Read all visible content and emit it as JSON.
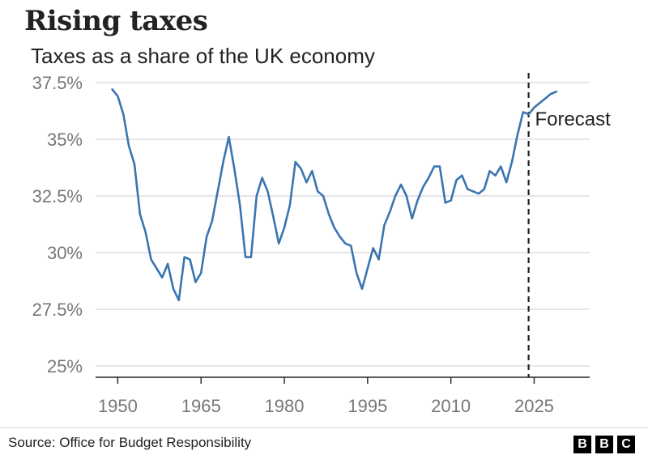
{
  "header": {
    "title": "Rising taxes",
    "subtitle": "Taxes as a share of the UK economy"
  },
  "footer": {
    "source": "Source: Office for Budget Responsibility",
    "logo_letters": [
      "B",
      "B",
      "C"
    ]
  },
  "colors": {
    "line": "#3a75b0",
    "grid": "#d6d6d6",
    "axis": "#222222",
    "tick_text": "#777777"
  },
  "chart_data": {
    "type": "line",
    "title": "Rising taxes",
    "subtitle": "Taxes as a share of the UK economy",
    "xlabel": "",
    "ylabel": "",
    "xlim": [
      1946,
      2035
    ],
    "ylim": [
      25,
      37.5
    ],
    "y_ticks": [
      25,
      27.5,
      30,
      32.5,
      35,
      37.5
    ],
    "y_tick_labels": [
      "25%",
      "27.5%",
      "30%",
      "32.5%",
      "35%",
      "37.5%"
    ],
    "x_ticks": [
      1950,
      1965,
      1980,
      1995,
      2010,
      2025
    ],
    "x_tick_labels": [
      "1950",
      "1965",
      "1980",
      "1995",
      "2010",
      "2025"
    ],
    "grid": true,
    "forecast_start": 2024,
    "annotations": [
      {
        "text": "Forecast",
        "x": 2025,
        "y": 35.6
      }
    ],
    "series": [
      {
        "x": [
          1949,
          1950,
          1951,
          1952,
          1953,
          1954,
          1955,
          1956,
          1957,
          1958,
          1959,
          1960,
          1961,
          1962,
          1963,
          1964,
          1965,
          1966,
          1967,
          1968,
          1969,
          1970,
          1971,
          1972,
          1973,
          1974,
          1975,
          1976,
          1977,
          1978,
          1979,
          1980,
          1981,
          1982,
          1983,
          1984,
          1985,
          1986,
          1987,
          1988,
          1989,
          1990,
          1991,
          1992,
          1993,
          1994,
          1995,
          1996,
          1997,
          1998,
          1999,
          2000,
          2001,
          2002,
          2003,
          2004,
          2005,
          2006,
          2007,
          2008,
          2009,
          2010,
          2011,
          2012,
          2013,
          2014,
          2015,
          2016,
          2017,
          2018,
          2019,
          2020,
          2021,
          2022,
          2023,
          2024,
          2025,
          2026,
          2027,
          2028,
          2029
        ],
        "y": [
          37.2,
          36.9,
          36.1,
          34.7,
          33.9,
          31.7,
          30.9,
          29.7,
          29.3,
          28.9,
          29.5,
          28.4,
          27.9,
          29.8,
          29.7,
          28.7,
          29.1,
          30.7,
          31.4,
          32.7,
          34.0,
          35.1,
          33.7,
          32.1,
          29.8,
          29.8,
          32.5,
          33.3,
          32.7,
          31.6,
          30.4,
          31.1,
          32.1,
          34.0,
          33.7,
          33.1,
          33.6,
          32.7,
          32.5,
          31.7,
          31.1,
          30.7,
          30.4,
          30.3,
          29.1,
          28.4,
          29.3,
          30.2,
          29.7,
          31.2,
          31.8,
          32.5,
          33.0,
          32.5,
          31.5,
          32.3,
          32.9,
          33.3,
          33.8,
          33.8,
          32.2,
          32.3,
          33.2,
          33.4,
          32.8,
          32.7,
          32.6,
          32.8,
          33.6,
          33.4,
          33.8,
          33.1,
          34.0,
          35.2,
          36.2,
          36.1,
          36.4,
          36.6,
          36.8,
          37.0,
          37.1
        ]
      }
    ]
  }
}
